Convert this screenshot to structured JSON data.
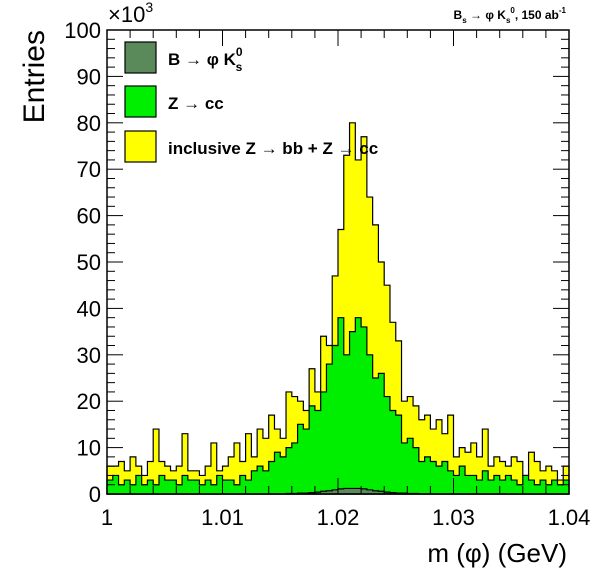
{
  "chart_data": {
    "type": "area",
    "title": "",
    "header_label": "B_s → φ K_s^0, 150 ab^-1",
    "xlabel": "m (φ) (GeV)",
    "ylabel": "Entries",
    "y_multiplier": "×10^3",
    "xlim": [
      1.0,
      1.04
    ],
    "ylim": [
      0,
      100
    ],
    "x_ticks": [
      "1",
      "1.01",
      "1.02",
      "1.03",
      "1.04"
    ],
    "y_ticks": [
      "0",
      "10",
      "20",
      "30",
      "40",
      "50",
      "60",
      "70",
      "80",
      "90",
      "100"
    ],
    "bin_width": 0.0005,
    "x_bin_low_edges": "1.0000 + i*0.0005, i = 0..79",
    "colors": {
      "inclusive": "#ffff00",
      "zcc": "#00ee00",
      "signal": "#5a8a5a",
      "outline": "#000000"
    },
    "legend": {
      "position": "top-left",
      "entries": [
        {
          "key": "signal",
          "label": "B → φ K",
          "sup": "0",
          "sub": "s"
        },
        {
          "key": "zcc",
          "label": "Z → cc"
        },
        {
          "key": "inclusive",
          "label": "inclusive Z → bb + Z → cc"
        }
      ]
    },
    "series": [
      {
        "name": "inclusive Z → bb + Z → cc",
        "values": [
          6,
          6,
          7,
          5,
          8,
          6,
          4,
          7,
          14,
          7,
          6,
          5,
          6,
          13,
          5,
          5,
          4,
          6,
          11,
          5,
          6,
          8,
          11,
          7,
          13,
          8,
          14,
          12,
          17,
          14,
          12,
          22,
          21,
          20,
          18,
          27,
          22,
          34,
          32,
          47,
          57,
          73,
          80,
          72,
          77,
          64,
          58,
          50,
          45,
          37,
          33,
          20,
          21,
          19,
          16,
          17,
          14,
          16,
          13,
          17,
          8,
          10,
          9,
          11,
          8,
          14,
          6,
          8,
          7,
          6,
          8,
          7,
          4,
          9,
          7,
          5,
          6,
          5,
          3,
          6
        ]
      },
      {
        "name": "Z → cc",
        "values": [
          3,
          4,
          2,
          3,
          2,
          4,
          2,
          3,
          2,
          4,
          3,
          3,
          2,
          4,
          3,
          3,
          2,
          3,
          2,
          4,
          3,
          3,
          2,
          4,
          3,
          5,
          6,
          5,
          7,
          9,
          8,
          10,
          11,
          15,
          14,
          19,
          18,
          22,
          28,
          32,
          38,
          30,
          35,
          38,
          36,
          30,
          25,
          26,
          21,
          18,
          17,
          11,
          12,
          10,
          7,
          8,
          7,
          6,
          7,
          5,
          4,
          6,
          4,
          4,
          3,
          5,
          3,
          4,
          3,
          4,
          3,
          2,
          4,
          3,
          2,
          3,
          2,
          3,
          2,
          3
        ]
      },
      {
        "name": "B → φ K_s^0",
        "values": [
          0,
          0,
          0,
          0,
          0,
          0,
          0,
          0,
          0,
          0,
          0,
          0,
          0,
          0,
          0,
          0,
          0,
          0,
          0,
          0,
          0,
          0,
          0,
          0,
          0,
          0,
          0,
          0,
          0,
          0,
          0,
          0.1,
          0.1,
          0.2,
          0.2,
          0.3,
          0.4,
          0.6,
          0.7,
          0.9,
          1.1,
          1.2,
          1.2,
          1.2,
          1.1,
          0.9,
          0.7,
          0.6,
          0.4,
          0.3,
          0.2,
          0.2,
          0.1,
          0.1,
          0,
          0,
          0,
          0,
          0,
          0,
          0,
          0,
          0,
          0,
          0,
          0,
          0,
          0,
          0,
          0,
          0,
          0,
          0,
          0,
          0,
          0,
          0,
          0,
          0,
          0
        ]
      }
    ]
  }
}
